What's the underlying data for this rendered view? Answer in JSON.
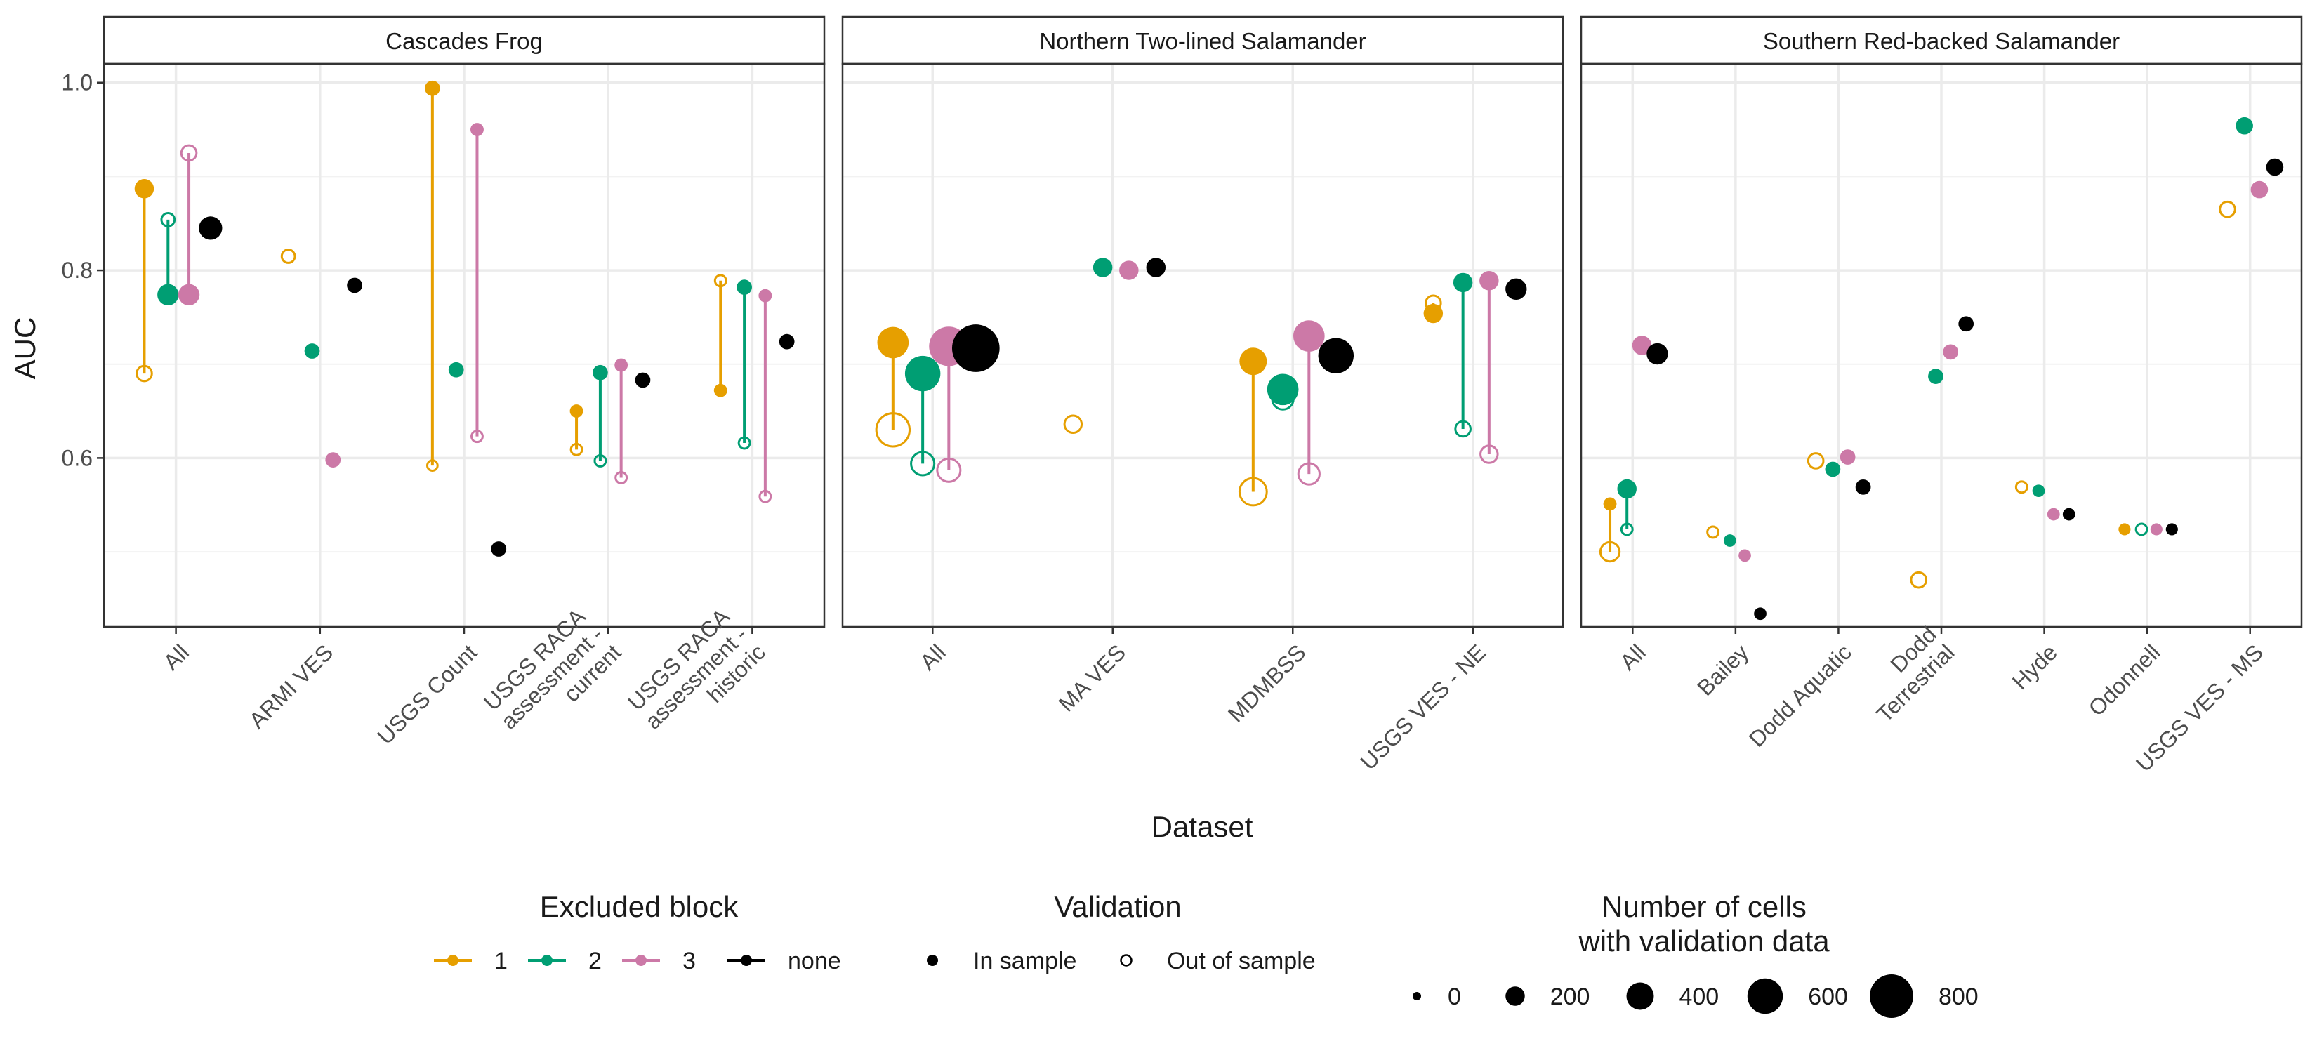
{
  "colors": {
    "1": "#E69F00",
    "2": "#009E73",
    "3": "#CC79A7",
    "none": "#000000"
  },
  "chart_data": {
    "type": "scatter",
    "ylabel": "AUC",
    "xlabel": "Dataset",
    "ylim": [
      0.42,
      1.02
    ],
    "y_ticks": [
      0.6,
      0.8,
      1.0
    ],
    "y_tick_labels": [
      "0.6",
      "0.8",
      "1.0"
    ],
    "grid": true,
    "legend_position": "bottom",
    "panels": [
      {
        "title": "Cascades Frog",
        "categories": [
          "All",
          "ARMI VES",
          "USGS Count",
          "USGS RACA assessment - current",
          "USGS RACA assessment - historic"
        ],
        "category_labels": [
          [
            "All"
          ],
          [
            "ARMI VES"
          ],
          [
            "USGS Count"
          ],
          [
            "USGS RACA",
            "assessment -",
            "current"
          ],
          [
            "USGS RACA",
            "assessment -",
            "historic"
          ]
        ],
        "points": [
          {
            "cat": 0,
            "block": "1",
            "validation": "In sample",
            "auc": 0.887,
            "n": 200
          },
          {
            "cat": 0,
            "block": "1",
            "validation": "Out of sample",
            "auc": 0.69,
            "n": 150
          },
          {
            "cat": 0,
            "block": "2",
            "validation": "In sample",
            "auc": 0.774,
            "n": 250
          },
          {
            "cat": 0,
            "block": "2",
            "validation": "Out of sample",
            "auc": 0.854,
            "n": 100
          },
          {
            "cat": 0,
            "block": "3",
            "validation": "In sample",
            "auc": 0.774,
            "n": 250
          },
          {
            "cat": 0,
            "block": "3",
            "validation": "Out of sample",
            "auc": 0.925,
            "n": 150
          },
          {
            "cat": 0,
            "block": "none",
            "validation": "In sample",
            "auc": 0.845,
            "n": 300
          },
          {
            "cat": 1,
            "block": "1",
            "validation": "Out of sample",
            "auc": 0.815,
            "n": 100
          },
          {
            "cat": 1,
            "block": "2",
            "validation": "In sample",
            "auc": 0.714,
            "n": 100
          },
          {
            "cat": 1,
            "block": "3",
            "validation": "In sample",
            "auc": 0.598,
            "n": 100
          },
          {
            "cat": 1,
            "block": "none",
            "validation": "In sample",
            "auc": 0.784,
            "n": 100
          },
          {
            "cat": 2,
            "block": "1",
            "validation": "In sample",
            "auc": 0.994,
            "n": 100
          },
          {
            "cat": 2,
            "block": "1",
            "validation": "Out of sample",
            "auc": 0.592,
            "n": 30
          },
          {
            "cat": 2,
            "block": "2",
            "validation": "In sample",
            "auc": 0.694,
            "n": 100
          },
          {
            "cat": 2,
            "block": "3",
            "validation": "In sample",
            "auc": 0.95,
            "n": 50
          },
          {
            "cat": 2,
            "block": "3",
            "validation": "Out of sample",
            "auc": 0.623,
            "n": 50
          },
          {
            "cat": 2,
            "block": "none",
            "validation": "In sample",
            "auc": 0.503,
            "n": 100
          },
          {
            "cat": 3,
            "block": "1",
            "validation": "In sample",
            "auc": 0.65,
            "n": 50
          },
          {
            "cat": 3,
            "block": "1",
            "validation": "Out of sample",
            "auc": 0.609,
            "n": 50
          },
          {
            "cat": 3,
            "block": "2",
            "validation": "In sample",
            "auc": 0.691,
            "n": 100
          },
          {
            "cat": 3,
            "block": "2",
            "validation": "Out of sample",
            "auc": 0.597,
            "n": 50
          },
          {
            "cat": 3,
            "block": "3",
            "validation": "In sample",
            "auc": 0.699,
            "n": 50
          },
          {
            "cat": 3,
            "block": "3",
            "validation": "Out of sample",
            "auc": 0.579,
            "n": 50
          },
          {
            "cat": 3,
            "block": "none",
            "validation": "In sample",
            "auc": 0.683,
            "n": 100
          },
          {
            "cat": 4,
            "block": "1",
            "validation": "In sample",
            "auc": 0.672,
            "n": 50
          },
          {
            "cat": 4,
            "block": "1",
            "validation": "Out of sample",
            "auc": 0.789,
            "n": 50
          },
          {
            "cat": 4,
            "block": "2",
            "validation": "In sample",
            "auc": 0.782,
            "n": 100
          },
          {
            "cat": 4,
            "block": "2",
            "validation": "Out of sample",
            "auc": 0.616,
            "n": 50
          },
          {
            "cat": 4,
            "block": "3",
            "validation": "In sample",
            "auc": 0.773,
            "n": 50
          },
          {
            "cat": 4,
            "block": "3",
            "validation": "Out of sample",
            "auc": 0.559,
            "n": 50
          },
          {
            "cat": 4,
            "block": "none",
            "validation": "In sample",
            "auc": 0.724,
            "n": 100
          }
        ]
      },
      {
        "title": "Northern Two-lined Salamander",
        "categories": [
          "All",
          "MA VES",
          "MDMBSS",
          "USGS VES - NE"
        ],
        "category_labels": [
          [
            "All"
          ],
          [
            "MA VES"
          ],
          [
            "MDMBSS"
          ],
          [
            "USGS VES - NE"
          ]
        ],
        "points": [
          {
            "cat": 0,
            "block": "1",
            "validation": "In sample",
            "auc": 0.723,
            "n": 500
          },
          {
            "cat": 0,
            "block": "1",
            "validation": "Out of sample",
            "auc": 0.63,
            "n": 600
          },
          {
            "cat": 0,
            "block": "2",
            "validation": "In sample",
            "auc": 0.69,
            "n": 600
          },
          {
            "cat": 0,
            "block": "2",
            "validation": "Out of sample",
            "auc": 0.594,
            "n": 350
          },
          {
            "cat": 0,
            "block": "3",
            "validation": "In sample",
            "auc": 0.719,
            "n": 700
          },
          {
            "cat": 0,
            "block": "3",
            "validation": "Out of sample",
            "auc": 0.587,
            "n": 350
          },
          {
            "cat": 0,
            "block": "none",
            "validation": "In sample",
            "auc": 0.717,
            "n": 900
          },
          {
            "cat": 1,
            "block": "1",
            "validation": "Out of sample",
            "auc": 0.636,
            "n": 200
          },
          {
            "cat": 1,
            "block": "2",
            "validation": "In sample",
            "auc": 0.803,
            "n": 200
          },
          {
            "cat": 1,
            "block": "3",
            "validation": "In sample",
            "auc": 0.8,
            "n": 200
          },
          {
            "cat": 1,
            "block": "none",
            "validation": "In sample",
            "auc": 0.803,
            "n": 200
          },
          {
            "cat": 2,
            "block": "1",
            "validation": "In sample",
            "auc": 0.703,
            "n": 400
          },
          {
            "cat": 2,
            "block": "1",
            "validation": "Out of sample",
            "auc": 0.564,
            "n": 450
          },
          {
            "cat": 2,
            "block": "2",
            "validation": "In sample",
            "auc": 0.673,
            "n": 500
          },
          {
            "cat": 2,
            "block": "2",
            "validation": "Out of sample",
            "auc": 0.663,
            "n": 300
          },
          {
            "cat": 2,
            "block": "3",
            "validation": "In sample",
            "auc": 0.73,
            "n": 500
          },
          {
            "cat": 2,
            "block": "3",
            "validation": "Out of sample",
            "auc": 0.583,
            "n": 300
          },
          {
            "cat": 2,
            "block": "none",
            "validation": "In sample",
            "auc": 0.709,
            "n": 600
          },
          {
            "cat": 3,
            "block": "1",
            "validation": "In sample",
            "auc": 0.754,
            "n": 200
          },
          {
            "cat": 3,
            "block": "1",
            "validation": "Out of sample",
            "auc": 0.765,
            "n": 150
          },
          {
            "cat": 3,
            "block": "2",
            "validation": "In sample",
            "auc": 0.787,
            "n": 200
          },
          {
            "cat": 3,
            "block": "2",
            "validation": "Out of sample",
            "auc": 0.631,
            "n": 150
          },
          {
            "cat": 3,
            "block": "3",
            "validation": "In sample",
            "auc": 0.789,
            "n": 200
          },
          {
            "cat": 3,
            "block": "3",
            "validation": "Out of sample",
            "auc": 0.604,
            "n": 200
          },
          {
            "cat": 3,
            "block": "none",
            "validation": "In sample",
            "auc": 0.78,
            "n": 250
          }
        ]
      },
      {
        "title": "Southern Red-backed Salamander",
        "categories": [
          "All",
          "Bailey",
          "Dodd Aquatic",
          "Dodd Terrestrial",
          "Hyde",
          "Odonnell",
          "USGS VES - MS"
        ],
        "category_labels": [
          [
            "All"
          ],
          [
            "Bailey"
          ],
          [
            "Dodd Aquatic"
          ],
          [
            "Dodd",
            "Terrestrial"
          ],
          [
            "Hyde"
          ],
          [
            "Odonnell"
          ],
          [
            "USGS VES - MS"
          ]
        ],
        "points": [
          {
            "cat": 0,
            "block": "1",
            "validation": "In sample",
            "auc": 0.551,
            "n": 50
          },
          {
            "cat": 0,
            "block": "1",
            "validation": "Out of sample",
            "auc": 0.5,
            "n": 250
          },
          {
            "cat": 0,
            "block": "2",
            "validation": "In sample",
            "auc": 0.567,
            "n": 200
          },
          {
            "cat": 0,
            "block": "2",
            "validation": "Out of sample",
            "auc": 0.524,
            "n": 50
          },
          {
            "cat": 0,
            "block": "3",
            "validation": "In sample",
            "auc": 0.72,
            "n": 200
          },
          {
            "cat": 0,
            "block": "none",
            "validation": "In sample",
            "auc": 0.711,
            "n": 250
          },
          {
            "cat": 1,
            "block": "1",
            "validation": "Out of sample",
            "auc": 0.521,
            "n": 50
          },
          {
            "cat": 1,
            "block": "2",
            "validation": "In sample",
            "auc": 0.512,
            "n": 30
          },
          {
            "cat": 1,
            "block": "3",
            "validation": "In sample",
            "auc": 0.496,
            "n": 30
          },
          {
            "cat": 1,
            "block": "none",
            "validation": "In sample",
            "auc": 0.434,
            "n": 30
          },
          {
            "cat": 2,
            "block": "1",
            "validation": "Out of sample",
            "auc": 0.597,
            "n": 150
          },
          {
            "cat": 2,
            "block": "2",
            "validation": "In sample",
            "auc": 0.588,
            "n": 100
          },
          {
            "cat": 2,
            "block": "3",
            "validation": "In sample",
            "auc": 0.601,
            "n": 100
          },
          {
            "cat": 2,
            "block": "none",
            "validation": "In sample",
            "auc": 0.569,
            "n": 100
          },
          {
            "cat": 3,
            "block": "1",
            "validation": "Out of sample",
            "auc": 0.47,
            "n": 150
          },
          {
            "cat": 3,
            "block": "2",
            "validation": "In sample",
            "auc": 0.687,
            "n": 100
          },
          {
            "cat": 3,
            "block": "3",
            "validation": "In sample",
            "auc": 0.713,
            "n": 100
          },
          {
            "cat": 3,
            "block": "none",
            "validation": "In sample",
            "auc": 0.743,
            "n": 100
          },
          {
            "cat": 4,
            "block": "1",
            "validation": "Out of sample",
            "auc": 0.569,
            "n": 50
          },
          {
            "cat": 4,
            "block": "2",
            "validation": "In sample",
            "auc": 0.565,
            "n": 30
          },
          {
            "cat": 4,
            "block": "3",
            "validation": "In sample",
            "auc": 0.54,
            "n": 30
          },
          {
            "cat": 4,
            "block": "none",
            "validation": "In sample",
            "auc": 0.54,
            "n": 30
          },
          {
            "cat": 5,
            "block": "1",
            "validation": "In sample",
            "auc": 0.524,
            "n": 20
          },
          {
            "cat": 5,
            "block": "2",
            "validation": "Out of sample",
            "auc": 0.524,
            "n": 50
          },
          {
            "cat": 5,
            "block": "3",
            "validation": "In sample",
            "auc": 0.524,
            "n": 20
          },
          {
            "cat": 5,
            "block": "none",
            "validation": "In sample",
            "auc": 0.524,
            "n": 20
          },
          {
            "cat": 6,
            "block": "1",
            "validation": "Out of sample",
            "auc": 0.865,
            "n": 150
          },
          {
            "cat": 6,
            "block": "2",
            "validation": "In sample",
            "auc": 0.954,
            "n": 150
          },
          {
            "cat": 6,
            "block": "3",
            "validation": "In sample",
            "auc": 0.886,
            "n": 150
          },
          {
            "cat": 6,
            "block": "none",
            "validation": "In sample",
            "auc": 0.91,
            "n": 150
          }
        ]
      }
    ]
  },
  "legend": {
    "block": {
      "title": "Excluded block",
      "items": [
        {
          "key": "1",
          "label": "1"
        },
        {
          "key": "2",
          "label": "2"
        },
        {
          "key": "3",
          "label": "3"
        },
        {
          "key": "none",
          "label": "none"
        }
      ]
    },
    "validation": {
      "title": "Validation",
      "items": [
        {
          "label": "In sample",
          "filled": true
        },
        {
          "label": "Out of sample",
          "filled": false
        }
      ]
    },
    "size": {
      "title_lines": [
        "Number of cells",
        "with validation data"
      ],
      "items": [
        {
          "n": 0,
          "label": "0"
        },
        {
          "n": 200,
          "label": "200"
        },
        {
          "n": 400,
          "label": "400"
        },
        {
          "n": 600,
          "label": "600"
        },
        {
          "n": 800,
          "label": "800"
        }
      ]
    }
  }
}
